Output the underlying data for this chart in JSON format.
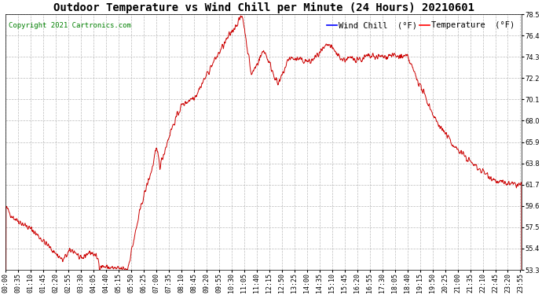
{
  "title": "Outdoor Temperature vs Wind Chill per Minute (24 Hours) 20210601",
  "copyright": "Copyright 2021 Cartronics.com",
  "legend_wind_chill": "Wind Chill  (°F)",
  "legend_temperature": "Temperature  (°F)",
  "line_color": "#cc0000",
  "background_color": "#ffffff",
  "grid_color": "#bbbbbb",
  "ylim": [
    53.3,
    78.5
  ],
  "yticks": [
    53.3,
    55.4,
    57.5,
    59.6,
    61.7,
    63.8,
    65.9,
    68.0,
    70.1,
    72.2,
    74.3,
    76.4,
    78.5
  ],
  "title_fontsize": 10,
  "copyright_fontsize": 6.5,
  "legend_fontsize": 7.5,
  "tick_fontsize": 6,
  "tick_interval_min": 35
}
